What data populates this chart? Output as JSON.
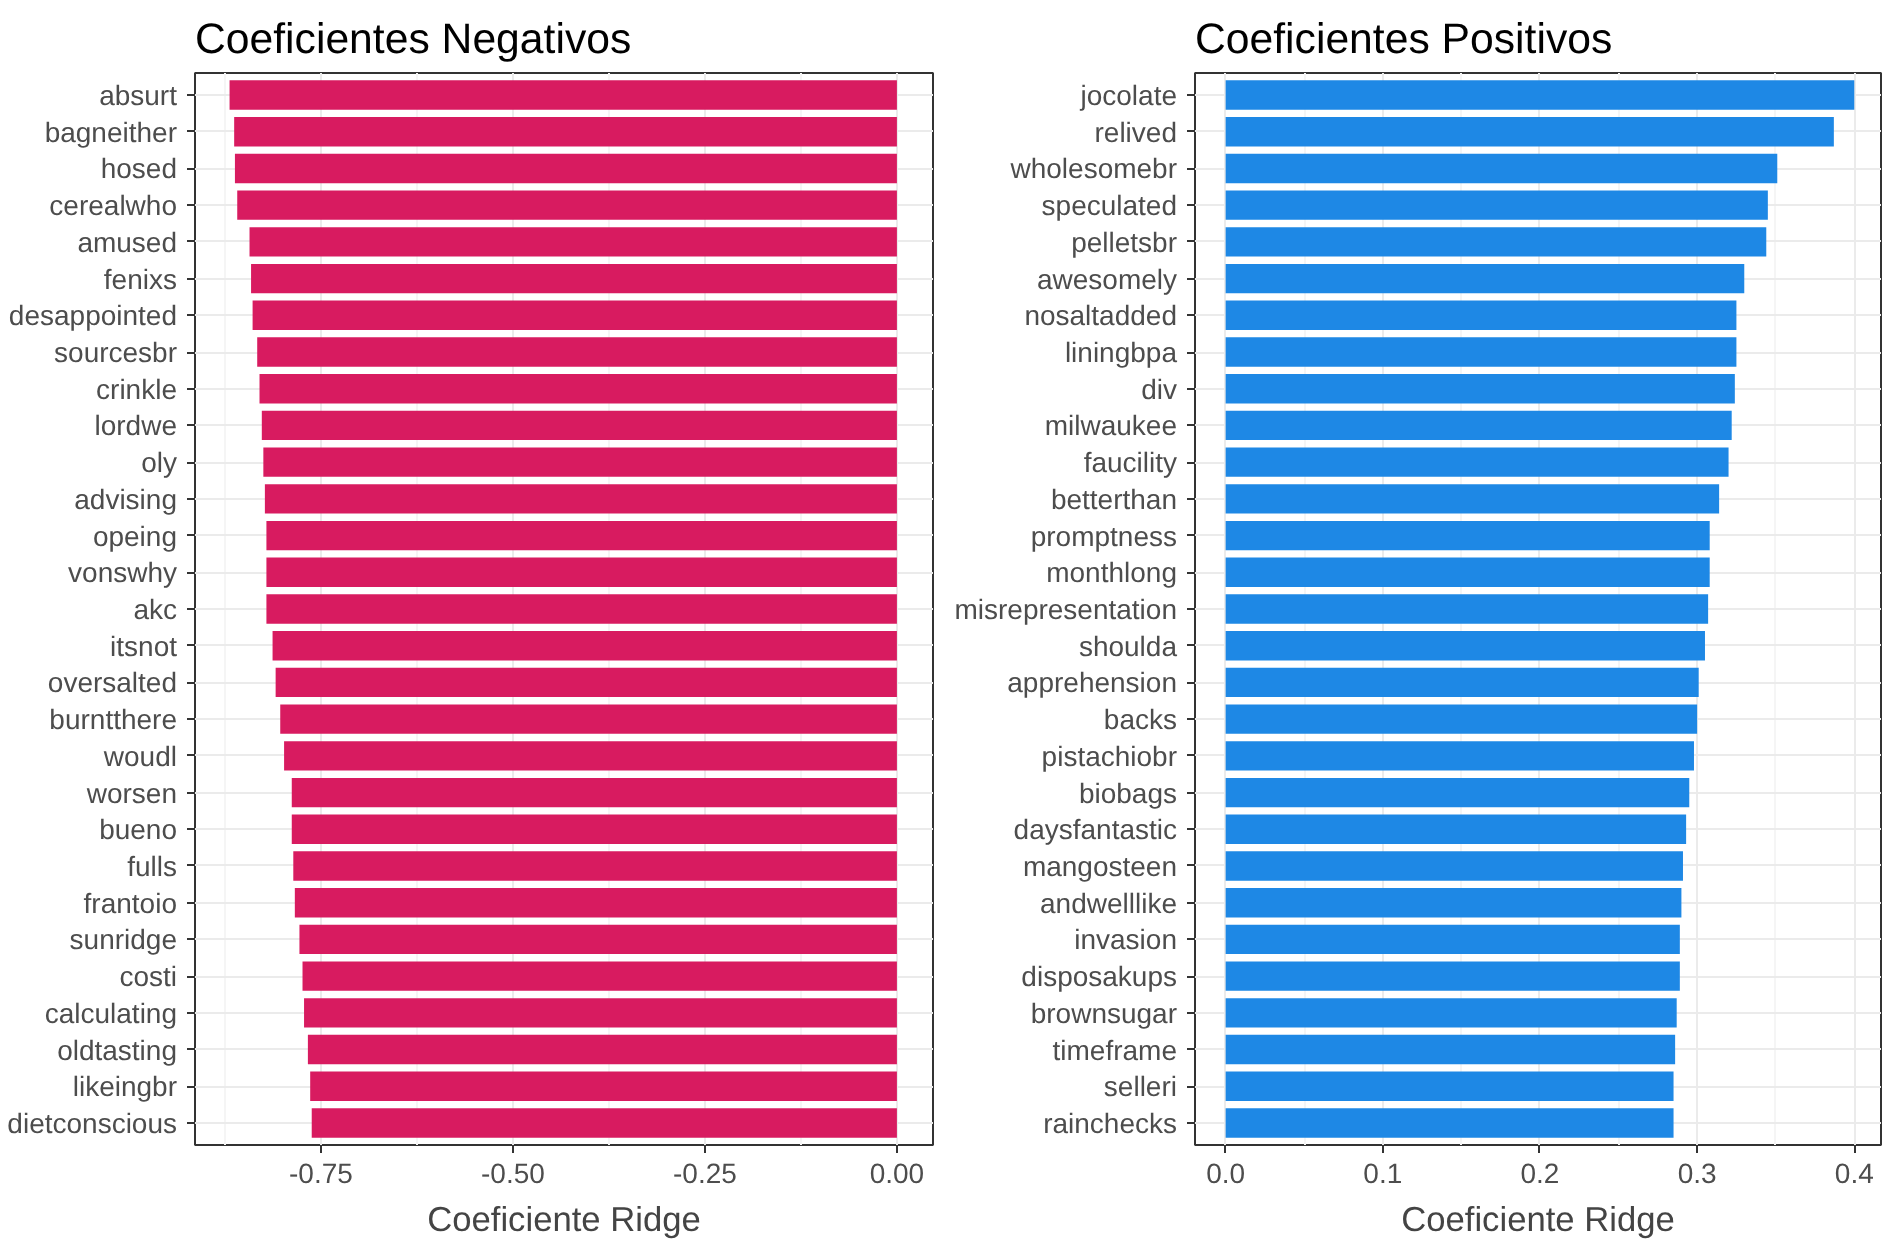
{
  "chart_data": [
    {
      "type": "bar",
      "orientation": "horizontal",
      "title": "Coeficientes Negativos",
      "xlabel": "Coeficiente Ridge",
      "categories": [
        "absurt",
        "bagneither",
        "hosed",
        "cerealwho",
        "amused",
        "fenixs",
        "desappointed",
        "sourcesbr",
        "crinkle",
        "lordwe",
        "oly",
        "advising",
        "opeing",
        "vonswhy",
        "akc",
        "itsnot",
        "oversalted",
        "burntthere",
        "woudl",
        "worsen",
        "bueno",
        "fulls",
        "frantoio",
        "sunridge",
        "costi",
        "calculating",
        "oldtasting",
        "likeingbr",
        "dietconscious"
      ],
      "values": [
        -0.869,
        -0.863,
        -0.862,
        -0.859,
        -0.843,
        -0.841,
        -0.839,
        -0.833,
        -0.83,
        -0.827,
        -0.825,
        -0.823,
        -0.821,
        -0.821,
        -0.821,
        -0.813,
        -0.809,
        -0.803,
        -0.798,
        -0.788,
        -0.788,
        -0.786,
        -0.784,
        -0.778,
        -0.774,
        -0.772,
        -0.767,
        -0.764,
        -0.762
      ],
      "color": "#d81b60",
      "xlim": [
        -0.914,
        0.047
      ],
      "xticks": [
        {
          "value": -0.75,
          "label": "-0.75"
        },
        {
          "value": -0.5,
          "label": "-0.50"
        },
        {
          "value": -0.25,
          "label": "-0.25"
        },
        {
          "value": 0,
          "label": "0.00"
        }
      ],
      "grid": true
    },
    {
      "type": "bar",
      "orientation": "horizontal",
      "title": "Coeficientes Positivos",
      "xlabel": "Coeficiente Ridge",
      "categories": [
        "jocolate",
        "relived",
        "wholesomebr",
        "speculated",
        "pelletsbr",
        "awesomely",
        "nosaltadded",
        "liningbpa",
        "div",
        "milwaukee",
        "faucility",
        "betterthan",
        "promptness",
        "monthlong",
        "misrepresentation",
        "shoulda",
        "apprehension",
        "backs",
        "pistachiobr",
        "biobags",
        "daysfantastic",
        "mangosteen",
        "andwelllike",
        "invasion",
        "disposakups",
        "brownsugar",
        "timeframe",
        "selleri",
        "rainchecks"
      ],
      "values": [
        0.4,
        0.387,
        0.351,
        0.345,
        0.344,
        0.33,
        0.325,
        0.325,
        0.324,
        0.322,
        0.32,
        0.314,
        0.308,
        0.308,
        0.307,
        0.305,
        0.301,
        0.3,
        0.298,
        0.295,
        0.293,
        0.291,
        0.29,
        0.289,
        0.289,
        0.287,
        0.286,
        0.285,
        0.285
      ],
      "color": "#1e88e5",
      "xlim": [
        -0.0195,
        0.417
      ],
      "xticks": [
        {
          "value": 0,
          "label": "0.0"
        },
        {
          "value": 0.1,
          "label": "0.1"
        },
        {
          "value": 0.2,
          "label": "0.2"
        },
        {
          "value": 0.3,
          "label": "0.3"
        },
        {
          "value": 0.4,
          "label": "0.4"
        }
      ],
      "grid": true
    }
  ]
}
